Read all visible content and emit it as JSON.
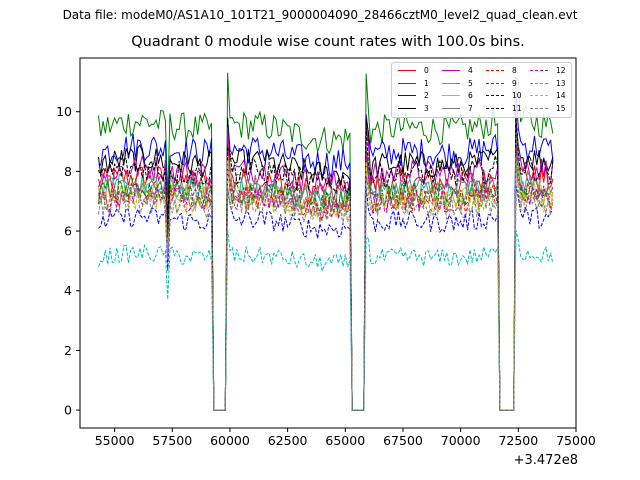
{
  "figure": {
    "suptitle": "Data file: modeM0/AS1A10_101T21_9000004090_28466cztM0_level2_quad_clean.evt",
    "title": "Quadrant 0 module wise count rates with 100.0s bins.",
    "x_offset_label": "+3.472e8"
  },
  "chart_data": {
    "type": "line",
    "title": "Quadrant 0 module wise count rates with 100.0s bins.",
    "xlabel": "",
    "ylabel": "",
    "x_offset": 347200000,
    "xlim": [
      53500,
      75000
    ],
    "ylim": [
      -0.6,
      11.8
    ],
    "xticks": [
      55000,
      57500,
      60000,
      62500,
      65000,
      67500,
      70000,
      72500,
      75000
    ],
    "xtick_labels": [
      "55000",
      "57500",
      "60000",
      "62500",
      "65000",
      "67500",
      "70000",
      "72500",
      "75000"
    ],
    "yticks": [
      0,
      2,
      4,
      6,
      8,
      10
    ],
    "ytick_labels": [
      "0",
      "2",
      "4",
      "6",
      "8",
      "10"
    ],
    "legend_position": "upper right",
    "legend_ncol": 4,
    "x_range": [
      54300,
      74000
    ],
    "bin_seconds": 100,
    "gaps": [
      [
        59300,
        59800
      ],
      [
        65250,
        65850
      ],
      [
        71700,
        72350
      ]
    ],
    "series": [
      {
        "name": "0",
        "color": "#ff0000",
        "dashed": false,
        "level": 7.6,
        "noise": 0.45
      },
      {
        "name": "1",
        "color": "#008000",
        "dashed": false,
        "level": 9.4,
        "noise": 0.5
      },
      {
        "name": "2",
        "color": "#0000ff",
        "dashed": false,
        "level": 8.6,
        "noise": 0.5
      },
      {
        "name": "3",
        "color": "#000000",
        "dashed": false,
        "level": 8.2,
        "noise": 0.45
      },
      {
        "name": "4",
        "color": "#bf00bf",
        "dashed": false,
        "level": 7.9,
        "noise": 0.45
      },
      {
        "name": "5",
        "color": "#1abc9c",
        "dashed": false,
        "level": 7.3,
        "noise": 0.4
      },
      {
        "name": "6",
        "color": "#bcbd22",
        "dashed": false,
        "level": 7.1,
        "noise": 0.4
      },
      {
        "name": "7",
        "color": "#7f7f7f",
        "dashed": false,
        "level": 7.4,
        "noise": 0.4
      },
      {
        "name": "8",
        "color": "#ff0000",
        "dashed": true,
        "level": 7.0,
        "noise": 0.4
      },
      {
        "name": "9",
        "color": "#008000",
        "dashed": true,
        "level": 7.2,
        "noise": 0.4
      },
      {
        "name": "10",
        "color": "#0000ff",
        "dashed": true,
        "level": 6.3,
        "noise": 0.35
      },
      {
        "name": "11",
        "color": "#000000",
        "dashed": true,
        "level": 7.9,
        "noise": 0.45
      },
      {
        "name": "12",
        "color": "#bf00bf",
        "dashed": true,
        "level": 7.0,
        "noise": 0.4
      },
      {
        "name": "13",
        "color": "#00bfbf",
        "dashed": true,
        "level": 5.1,
        "noise": 0.3
      },
      {
        "name": "14",
        "color": "#bcbd22",
        "dashed": true,
        "level": 6.9,
        "noise": 0.4
      },
      {
        "name": "15",
        "color": "#7f7f7f",
        "dashed": true,
        "level": 6.8,
        "noise": 0.4
      }
    ]
  }
}
